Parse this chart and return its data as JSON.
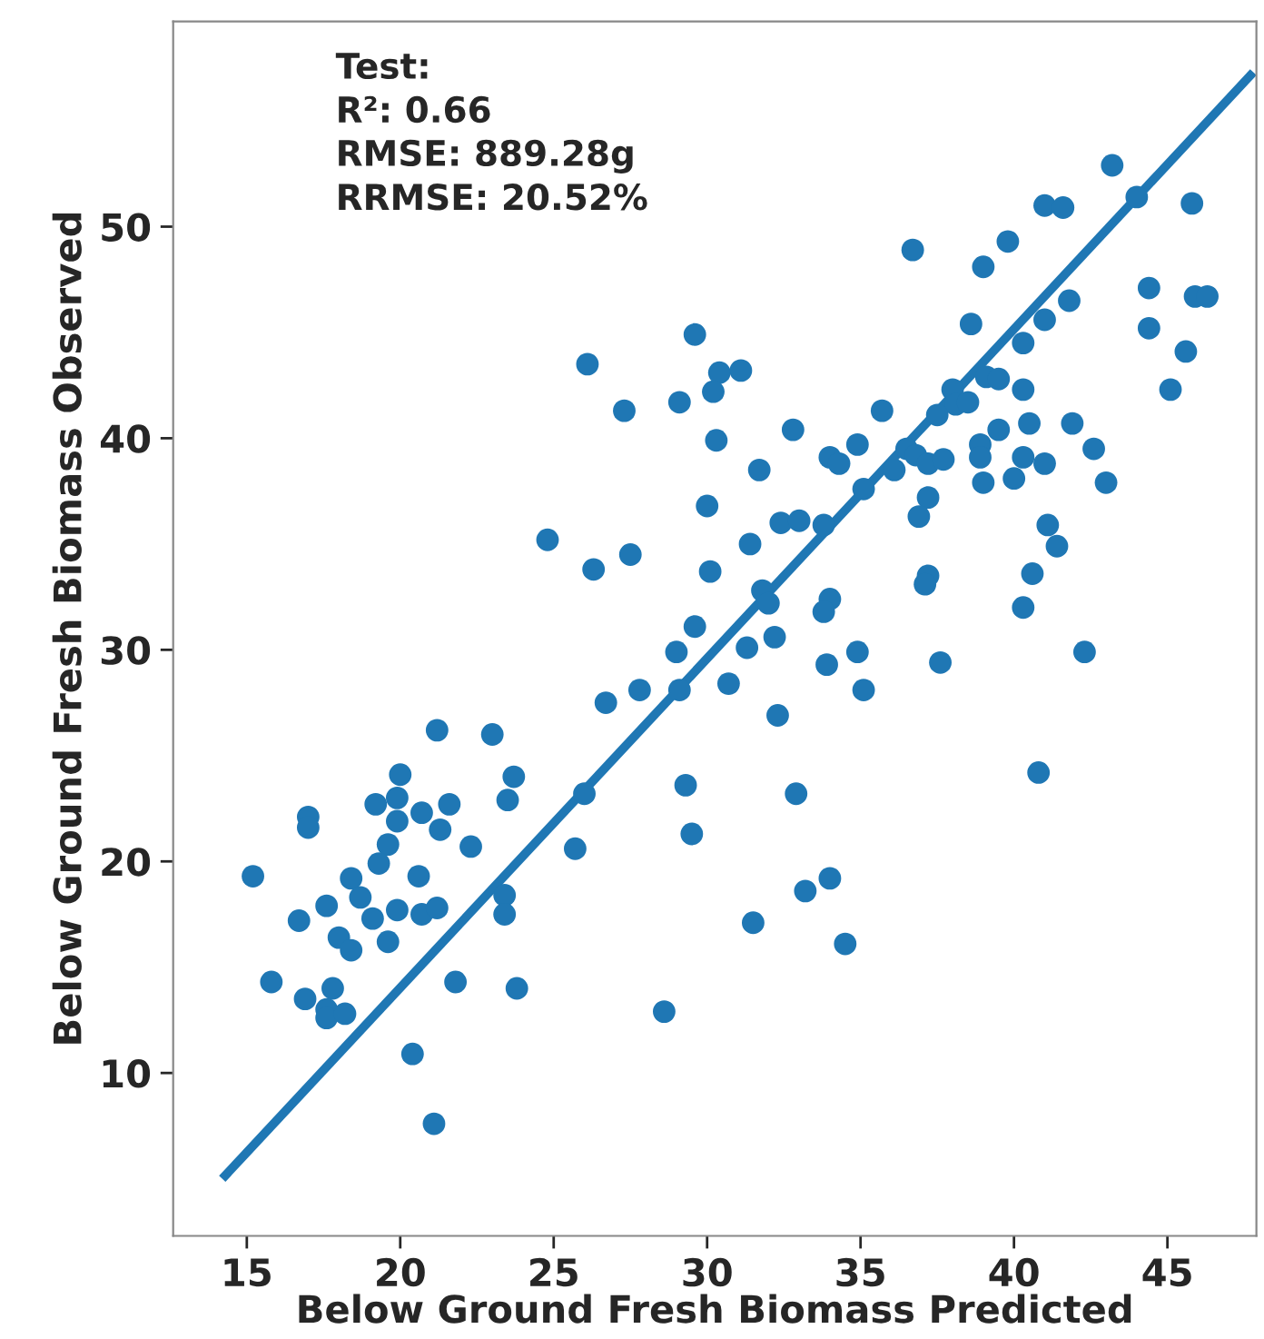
{
  "chart_data": {
    "type": "scatter",
    "xlabel": "Below Ground Fresh Biomass Predicted",
    "ylabel": "Below Ground Fresh Biomass Observed",
    "annotations": [
      "Test:",
      "R²: 0.66",
      "RMSE: 889.28g",
      "RRMSE: 20.52%"
    ],
    "xlim": [
      12.6,
      47.9
    ],
    "ylim": [
      2.3,
      59.7
    ],
    "xticks": [
      15,
      20,
      25,
      30,
      35,
      40,
      45
    ],
    "yticks": [
      10,
      20,
      30,
      40,
      50
    ],
    "grid": false,
    "series": [
      {
        "marker": "circle",
        "color": "#1f77b4",
        "x": [
          21.2,
          23.0,
          26.7,
          27.8,
          20.0,
          23.7,
          19.2,
          19.9,
          21.6,
          23.5,
          17.0,
          17.0,
          19.9,
          20.7,
          21.3,
          19.6,
          22.3,
          26.0,
          25.7,
          29.3,
          29.5,
          15.2,
          18.4,
          19.3,
          20.6,
          18.7,
          17.6,
          16.7,
          19.9,
          19.1,
          20.7,
          21.2,
          23.4,
          23.4,
          18.0,
          18.4,
          19.6,
          15.8,
          16.9,
          17.8,
          17.6,
          17.6,
          18.2,
          21.8,
          23.8,
          28.6,
          20.4,
          21.1,
          29.6,
          26.1,
          30.4,
          31.1,
          30.2,
          27.3,
          29.1,
          30.3,
          32.8,
          35.7,
          31.7,
          34.0,
          34.3,
          34.9,
          35.1,
          36.1,
          30.0,
          24.8,
          27.5,
          26.3,
          30.1,
          31.4,
          32.4,
          33.0,
          33.8,
          31.8,
          32.0,
          29.6,
          29.0,
          31.3,
          32.2,
          34.0,
          33.8,
          33.9,
          34.9,
          35.1,
          29.1,
          30.7,
          32.3,
          32.9,
          43.2,
          41.0,
          41.6,
          44.0,
          45.8,
          36.7,
          39.8,
          39.0,
          44.4,
          45.9,
          46.3,
          44.4,
          45.6,
          45.1,
          38.6,
          41.8,
          41.0,
          40.3,
          40.3,
          39.1,
          39.5,
          38.0,
          38.1,
          38.5,
          37.5,
          39.5,
          40.5,
          41.9,
          42.6,
          43.0,
          38.9,
          38.9,
          40.3,
          41.0,
          39.0,
          40.0,
          36.5,
          36.8,
          37.2,
          37.7,
          37.2,
          36.9,
          41.1,
          41.4,
          40.6,
          40.3,
          37.2,
          37.1,
          37.6,
          42.3,
          40.8,
          31.5,
          33.2,
          34.0,
          34.5
        ],
        "values": [
          26.2,
          26.0,
          27.5,
          28.1,
          24.1,
          24.0,
          22.7,
          23.0,
          22.7,
          22.9,
          22.1,
          21.6,
          21.9,
          22.3,
          21.5,
          20.8,
          20.7,
          23.2,
          20.6,
          23.6,
          21.3,
          19.3,
          19.2,
          19.9,
          19.3,
          18.3,
          17.9,
          17.2,
          17.7,
          17.3,
          17.5,
          17.8,
          18.4,
          17.5,
          16.4,
          15.8,
          16.2,
          14.3,
          13.5,
          14.0,
          13.0,
          12.6,
          12.8,
          14.3,
          14.0,
          12.9,
          10.9,
          7.6,
          44.9,
          43.5,
          43.1,
          43.2,
          42.2,
          41.3,
          41.7,
          39.9,
          40.4,
          41.3,
          38.5,
          39.1,
          38.8,
          39.7,
          37.6,
          38.5,
          36.8,
          35.2,
          34.5,
          33.8,
          33.7,
          35.0,
          36.0,
          36.1,
          35.9,
          32.8,
          32.2,
          31.1,
          29.9,
          30.1,
          30.6,
          32.4,
          31.8,
          29.3,
          29.9,
          28.1,
          28.1,
          28.4,
          26.9,
          23.2,
          52.9,
          51.0,
          50.9,
          51.4,
          51.1,
          48.9,
          49.3,
          48.1,
          47.1,
          46.7,
          46.7,
          45.2,
          44.1,
          42.3,
          45.4,
          46.5,
          45.6,
          44.5,
          42.3,
          42.9,
          42.8,
          42.3,
          41.6,
          41.7,
          41.1,
          40.4,
          40.7,
          40.7,
          39.5,
          37.9,
          39.7,
          39.1,
          39.1,
          38.8,
          37.9,
          38.1,
          39.5,
          39.2,
          38.8,
          39.0,
          37.2,
          36.3,
          35.9,
          34.9,
          33.6,
          32.0,
          33.5,
          33.1,
          29.4,
          29.9,
          24.2,
          17.1,
          18.6,
          19.2,
          16.1
        ]
      },
      {
        "type": "line",
        "color": "#1f77b4",
        "x": [
          14.2,
          47.8
        ],
        "values": [
          5.0,
          57.3
        ]
      }
    ]
  }
}
